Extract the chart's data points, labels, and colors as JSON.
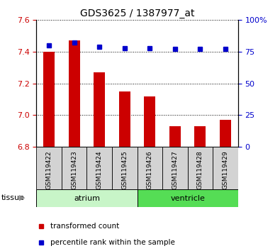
{
  "title": "GDS3625 / 1387977_at",
  "samples": [
    "GSM119422",
    "GSM119423",
    "GSM119424",
    "GSM119425",
    "GSM119426",
    "GSM119427",
    "GSM119428",
    "GSM119429"
  ],
  "transformed_counts": [
    7.4,
    7.47,
    7.27,
    7.15,
    7.12,
    6.93,
    6.93,
    6.97
  ],
  "percentile_ranks": [
    80,
    82,
    79,
    78,
    78,
    77,
    77,
    77
  ],
  "ylim_left": [
    6.8,
    7.6
  ],
  "ylim_right": [
    0,
    100
  ],
  "yticks_left": [
    6.8,
    7.0,
    7.2,
    7.4,
    7.6
  ],
  "yticks_right": [
    0,
    25,
    50,
    75,
    100
  ],
  "bar_color": "#cc0000",
  "dot_color": "#0000cc",
  "bar_bottom": 6.8,
  "tick_label_color_left": "#cc0000",
  "tick_label_color_right": "#0000cc",
  "atrium_color": "#c8f5c8",
  "ventricle_color": "#55dd55",
  "sample_box_color": "#d3d3d3"
}
